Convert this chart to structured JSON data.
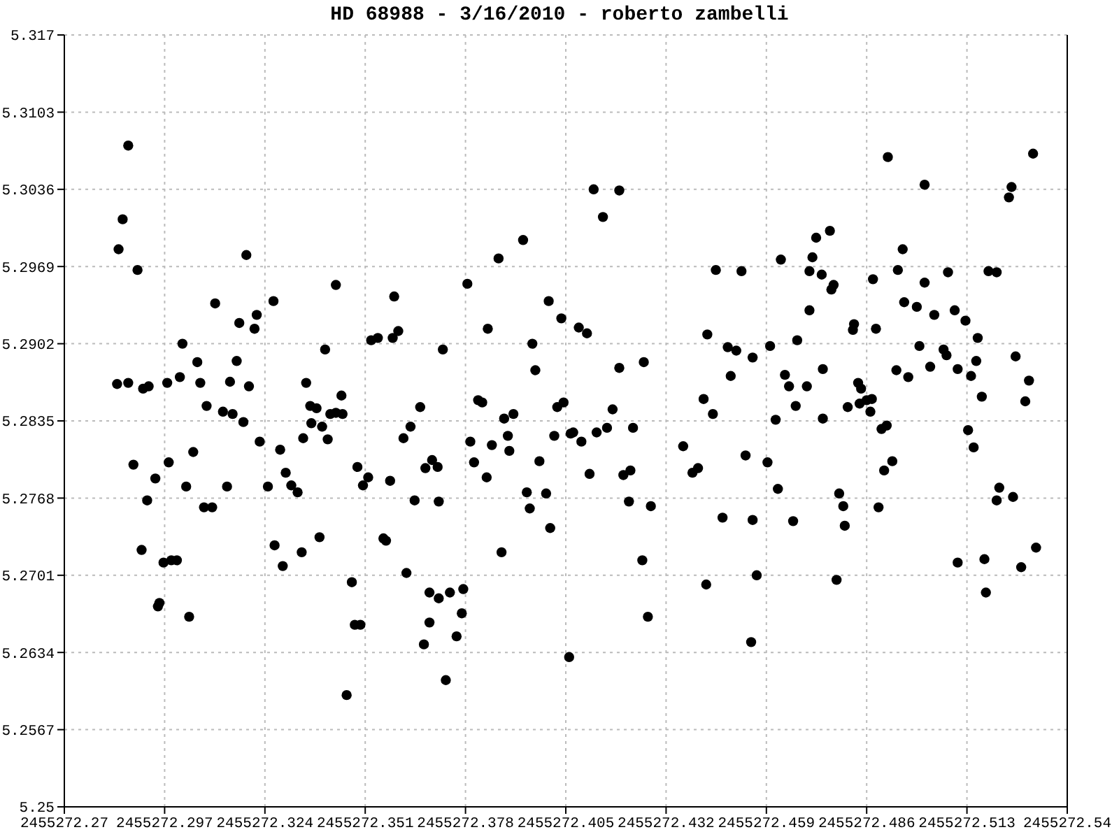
{
  "chart_data": {
    "type": "scatter",
    "title": "HD 68988 - 3/16/2010 - roberto zambelli",
    "xlim": [
      2455272.27,
      2455272.54
    ],
    "xticks": [
      2455272.27,
      2455272.297,
      2455272.324,
      2455272.351,
      2455272.378,
      2455272.405,
      2455272.432,
      2455272.459,
      2455272.486,
      2455272.513,
      2455272.54
    ],
    "ylim": [
      5.25,
      5.317
    ],
    "yticks": [
      5.25,
      5.2567,
      5.2634,
      5.2701,
      5.2768,
      5.2835,
      5.2902,
      5.2969,
      5.3036,
      5.3103,
      5.317
    ],
    "grid": true,
    "marker": "circle",
    "series": [
      {
        "color": "#000000",
        "x": [
          2455272.2846,
          2455272.2857,
          2455272.2872,
          2455272.2897,
          2455272.2842,
          2455272.2872,
          2455272.2927,
          2455272.2886,
          2455272.2912,
          2455272.2908,
          2455272.2923,
          2455272.2945,
          2455272.2956,
          2455272.2952,
          2455272.2967,
          2455272.2977,
          2455272.2981,
          2455272.2988,
          2455272.3003,
          2455272.3011,
          2455272.3018,
          2455272.3028,
          2455272.3036,
          2455272.3047,
          2455272.3058,
          2455272.3066,
          2455272.3076,
          2455272.3083,
          2455272.3098,
          2455272.3106,
          2455272.3127,
          2455272.3138,
          2455272.3146,
          2455272.3153,
          2455272.3164,
          2455272.3171,
          2455272.3182,
          2455272.319,
          2455272.3197,
          2455272.3212,
          2455272.3218,
          2455272.3226,
          2455272.3248,
          2455272.3263,
          2455272.3266,
          2455272.3281,
          2455272.3288,
          2455272.3296,
          2455272.3311,
          2455272.3328,
          2455272.3339,
          2455272.3343,
          2455272.3351,
          2455272.3362,
          2455272.3365,
          2455272.3379,
          2455272.3387,
          2455272.3394,
          2455272.3402,
          2455272.3409,
          2455272.3416,
          2455272.3431,
          2455272.3431,
          2455272.3446,
          2455272.3449,
          2455272.346,
          2455272.3474,
          2455272.3482,
          2455272.3497,
          2455272.3489,
          2455272.3504,
          2455272.3518,
          2455272.3526,
          2455272.3544,
          2455272.3559,
          2455272.3566,
          2455272.3584,
          2455272.3577,
          2455272.3599,
          2455272.3613,
          2455272.3588,
          2455272.3621,
          2455272.3632,
          2455272.3643,
          2455272.3658,
          2455272.3668,
          2455272.3672,
          2455272.3683,
          2455272.3683,
          2455272.369,
          2455272.3705,
          2455272.3708,
          2455272.3708,
          2455272.3719,
          2455272.3727,
          2455272.3738,
          2455272.3756,
          2455272.377,
          2455272.3774,
          2455272.3785,
          2455272.3793,
          2455272.3803,
          2455272.3814,
          2455272.3825,
          2455272.3837,
          2455272.384,
          2455272.3851,
          2455272.3869,
          2455272.3877,
          2455272.3884,
          2455272.3894,
          2455272.3898,
          2455272.3909,
          2455272.3935,
          2455272.3945,
          2455272.3953,
          2455272.396,
          2455272.3968,
          2455272.3979,
          2455272.3997,
          2455272.4008,
          2455272.4004,
          2455272.4019,
          2455272.4027,
          2455272.4038,
          2455272.4044,
          2455272.4059,
          2455272.4063,
          2455272.407,
          2455272.4085,
          2455272.4092,
          2455272.4107,
          2455272.4114,
          2455272.4125,
          2455272.4133,
          2455272.415,
          2455272.4161,
          2455272.4176,
          2455272.4194,
          2455272.4194,
          2455272.4205,
          2455272.422,
          2455272.4224,
          2455272.4256,
          2455272.4271,
          2455272.4279,
          2455272.4231,
          2455272.426,
          2455272.4366,
          2455272.4391,
          2455272.4406,
          2455272.4421,
          2455272.4428,
          2455272.4431,
          2455272.4446,
          2455272.4454,
          2455272.4472,
          2455272.4486,
          2455272.4494,
          2455272.4509,
          2455272.4523,
          2455272.4534,
          2455272.4549,
          2455272.4553,
          2455272.4553,
          2455272.4564,
          2455272.4593,
          2455272.46,
          2455272.4615,
          2455272.4621,
          2455272.4629,
          2455272.464,
          2455272.4651,
          2455272.4662,
          2455272.4669,
          2455272.4673,
          2455272.4699,
          2455272.4706,
          2455272.4706,
          2455272.4714,
          2455272.4724,
          2455272.4739,
          2455272.4742,
          2455272.4742,
          2455272.4761,
          2455272.4765,
          2455272.4771,
          2455272.4779,
          2455272.4786,
          2455272.4797,
          2455272.4801,
          2455272.4809,
          2455272.4823,
          2455272.4826,
          2455272.4837,
          2455272.4841,
          2455272.4845,
          2455272.486,
          2455272.487,
          2455272.4874,
          2455272.4877,
          2455272.4885,
          2455272.4892,
          2455272.49,
          2455272.4907,
          2455272.4914,
          2455272.4917,
          2455272.4929,
          2455272.494,
          2455272.4944,
          2455272.4957,
          2455272.4961,
          2455272.4972,
          2455272.4995,
          2455272.5002,
          2455272.5016,
          2455272.5016,
          2455272.5031,
          2455272.5042,
          2455272.5067,
          2455272.5075,
          2455272.5079,
          2455272.5097,
          2455272.5105,
          2455272.5105,
          2455272.5126,
          2455272.5133,
          2455272.5141,
          2455272.5148,
          2455272.5155,
          2455272.5159,
          2455272.517,
          2455272.5177,
          2455272.5181,
          2455272.5188,
          2455272.521,
          2455272.521,
          2455272.5217,
          2455272.5243,
          2455272.525,
          2455272.5254,
          2455272.5261,
          2455272.5276,
          2455272.5287,
          2455272.5297,
          2455272.5308,
          2455272.5316
        ],
        "values": [
          5.2984,
          5.301,
          5.3074,
          5.2966,
          5.2867,
          5.2868,
          5.2865,
          5.2797,
          5.2863,
          5.2723,
          5.2766,
          5.2785,
          5.2677,
          5.2674,
          5.2712,
          5.2868,
          5.2799,
          5.2714,
          5.2714,
          5.2873,
          5.2902,
          5.2778,
          5.2665,
          5.2808,
          5.2886,
          5.2868,
          5.276,
          5.2848,
          5.276,
          5.2937,
          5.2843,
          5.2778,
          5.2869,
          5.2841,
          5.2887,
          5.292,
          5.2834,
          5.2979,
          5.2865,
          5.2915,
          5.2927,
          5.2817,
          5.2778,
          5.2939,
          5.2727,
          5.281,
          5.2709,
          5.279,
          5.2779,
          5.2773,
          5.2721,
          5.282,
          5.2868,
          5.2848,
          5.2833,
          5.2846,
          5.2734,
          5.283,
          5.2897,
          5.2819,
          5.2841,
          5.2953,
          5.2842,
          5.2857,
          5.2841,
          5.2597,
          5.2695,
          5.2658,
          5.2658,
          5.2795,
          5.2779,
          5.2786,
          5.2905,
          5.2907,
          5.2733,
          5.2731,
          5.2907,
          5.2783,
          5.2913,
          5.282,
          5.2943,
          5.2703,
          5.283,
          5.2766,
          5.2847,
          5.2641,
          5.2794,
          5.2686,
          5.266,
          5.2801,
          5.2795,
          5.2765,
          5.2681,
          5.2897,
          5.261,
          5.2686,
          5.2648,
          5.2668,
          5.2689,
          5.2954,
          5.2817,
          5.2799,
          5.2853,
          5.2851,
          5.2786,
          5.2915,
          5.2814,
          5.2976,
          5.2721,
          5.2837,
          5.2822,
          5.2809,
          5.2841,
          5.2992,
          5.2773,
          5.2759,
          5.2902,
          5.2879,
          5.28,
          5.2772,
          5.2742,
          5.2939,
          5.2822,
          5.2847,
          5.2924,
          5.2851,
          5.263,
          5.2824,
          5.2825,
          5.2916,
          5.2817,
          5.2911,
          5.2789,
          5.3036,
          5.2825,
          5.3012,
          5.2829,
          5.2845,
          5.3035,
          5.2881,
          5.2788,
          5.2765,
          5.2792,
          5.2714,
          5.2665,
          5.2761,
          5.2829,
          5.2886,
          5.2813,
          5.279,
          5.2794,
          5.2854,
          5.2693,
          5.291,
          5.2841,
          5.2966,
          5.2751,
          5.2899,
          5.2874,
          5.2896,
          5.2965,
          5.2805,
          5.2643,
          5.289,
          5.2749,
          5.2701,
          5.2799,
          5.29,
          5.2836,
          5.2776,
          5.2975,
          5.2875,
          5.2865,
          5.2748,
          5.2848,
          5.2905,
          5.2865,
          5.2931,
          5.2965,
          5.2977,
          5.2994,
          5.2962,
          5.288,
          5.2837,
          5.3,
          5.2949,
          5.2953,
          5.2697,
          5.2772,
          5.2761,
          5.2744,
          5.2847,
          5.2914,
          5.2919,
          5.2868,
          5.285,
          5.2863,
          5.2853,
          5.2843,
          5.2854,
          5.2958,
          5.2915,
          5.276,
          5.2828,
          5.2792,
          5.2831,
          5.3064,
          5.28,
          5.2879,
          5.2966,
          5.2984,
          5.2938,
          5.2873,
          5.2934,
          5.29,
          5.304,
          5.2955,
          5.2882,
          5.2927,
          5.2897,
          5.2892,
          5.2964,
          5.2931,
          5.2712,
          5.288,
          5.2922,
          5.2827,
          5.2874,
          5.2812,
          5.2887,
          5.2907,
          5.2856,
          5.2715,
          5.2686,
          5.2965,
          5.2964,
          5.2766,
          5.2777,
          5.3029,
          5.3038,
          5.2769,
          5.2891,
          5.2708,
          5.2852,
          5.287,
          5.3067,
          5.2725
        ]
      }
    ]
  }
}
